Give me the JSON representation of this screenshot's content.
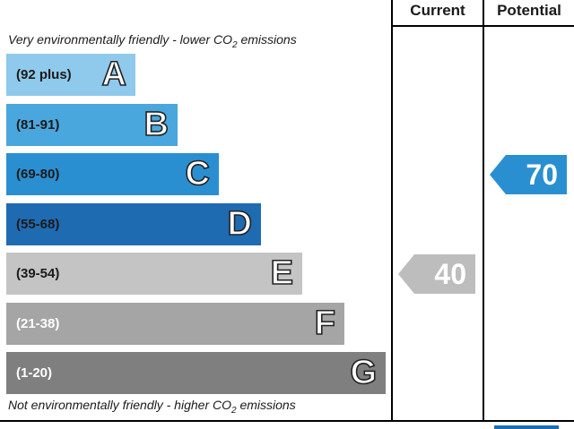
{
  "header": {
    "current": "Current",
    "potential": "Potential"
  },
  "notes": {
    "top_prefix": "Very environmentally friendly - lower C",
    "top_sub": "2",
    "top_suffix": " emissions",
    "top_mid": "O",
    "bottom_prefix": "Not environmentally friendly - higher C",
    "bottom_mid": "O",
    "bottom_sub": "2",
    "bottom_suffix": " emissions"
  },
  "chart_data": {
    "type": "bar",
    "bands": [
      {
        "range": "(92 plus)",
        "letter": "A",
        "color": "#8fc9ec",
        "text_color": "#1a1a1a",
        "level": 1
      },
      {
        "range": "(81-91)",
        "letter": "B",
        "color": "#4aa7dd",
        "text_color": "#1a1a1a",
        "level": 2
      },
      {
        "range": "(69-80)",
        "letter": "C",
        "color": "#2a8fd1",
        "text_color": "#1a1a1a",
        "level": 3
      },
      {
        "range": "(55-68)",
        "letter": "D",
        "color": "#1f6bb2",
        "text_color": "#1a1a1a",
        "level": 4
      },
      {
        "range": "(39-54)",
        "letter": "E",
        "color": "#c4c4c4",
        "text_color": "#1a1a1a",
        "level": 5
      },
      {
        "range": "(21-38)",
        "letter": "F",
        "color": "#a5a5a5",
        "text_color": "#ffffff",
        "level": 6
      },
      {
        "range": "(1-20)",
        "letter": "G",
        "color": "#7f7f7f",
        "text_color": "#ffffff",
        "level": 7
      }
    ],
    "current": {
      "value": "40",
      "band": "E",
      "color": "#bdbdbd"
    },
    "potential": {
      "value": "70",
      "band": "C",
      "color": "#2a8fd1"
    }
  }
}
